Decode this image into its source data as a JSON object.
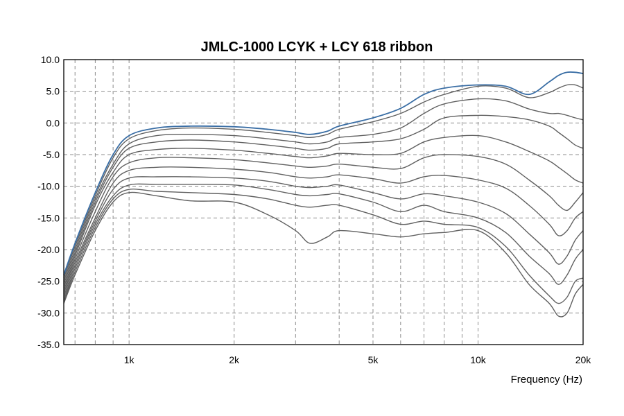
{
  "chart_data": {
    "type": "line",
    "title": "JMLC-1000 LCYK + LCY 618 ribbon",
    "xlabel": "Frequency (Hz)",
    "ylabel": "",
    "x_scale": "log",
    "xlim": [
      650,
      20000
    ],
    "ylim": [
      -35,
      10
    ],
    "grid": true,
    "x_tick_labels": [
      {
        "value": 1000,
        "label": "1k"
      },
      {
        "value": 2000,
        "label": "2k"
      },
      {
        "value": 5000,
        "label": "5k"
      },
      {
        "value": 10000,
        "label": "10k"
      },
      {
        "value": 20000,
        "label": "20k"
      }
    ],
    "y_ticks": [
      10,
      5,
      0,
      -5,
      -10,
      -15,
      -20,
      -25,
      -30,
      -35
    ],
    "y_tick_labels": [
      "10.0",
      "5.0",
      "0.0",
      "-5.0",
      "-10.0",
      "-15.0",
      "-20.0",
      "-25.0",
      "-30.0",
      "-35.0"
    ],
    "colors": {
      "primary_curve": "#3a6ea5",
      "curves": "#606060",
      "grid": "#8c8c8c",
      "axis": "#000000"
    },
    "x": [
      650,
      700,
      800,
      900,
      1000,
      1200,
      1500,
      2000,
      2500,
      3000,
      3300,
      3700,
      4000,
      5000,
      6000,
      7000,
      8000,
      10000,
      12000,
      14000,
      16000,
      17000,
      18000,
      19000,
      20000
    ],
    "series": [
      {
        "values": [
          -24,
          -19,
          -11,
          -5,
          -2,
          -0.8,
          -0.5,
          -0.6,
          -1,
          -1.5,
          -1.8,
          -1.3,
          -0.5,
          0.8,
          2.3,
          4.5,
          5.5,
          6,
          5.8,
          4.5,
          6.5,
          7.5,
          8,
          8,
          7.8
        ]
      },
      {
        "values": [
          -24.5,
          -19.5,
          -11.5,
          -5.5,
          -2.5,
          -1.2,
          -0.8,
          -1,
          -1.5,
          -2,
          -2.3,
          -1.8,
          -1,
          0.2,
          1.5,
          3.3,
          4.5,
          5.8,
          5.5,
          4,
          4.8,
          5.5,
          6,
          6,
          5.5
        ]
      },
      {
        "values": [
          -25,
          -20,
          -12,
          -6.5,
          -3.3,
          -2,
          -1.8,
          -2,
          -2.5,
          -3,
          -3.3,
          -3,
          -2.3,
          -1.8,
          -0.8,
          1.5,
          3,
          3.8,
          3.5,
          2.2,
          1.5,
          1.5,
          1.2,
          0.8,
          0.5
        ]
      },
      {
        "values": [
          -25.5,
          -20.5,
          -12.5,
          -7,
          -4,
          -3,
          -2.7,
          -3,
          -3.5,
          -4,
          -4.3,
          -4,
          -3.3,
          -3,
          -2.5,
          -1,
          0.8,
          1.2,
          1,
          0.5,
          -0.5,
          -1.5,
          -2.5,
          -3.5,
          -4
        ]
      },
      {
        "values": [
          -26,
          -21,
          -13,
          -7.8,
          -5,
          -4.2,
          -4,
          -4.3,
          -4.8,
          -5.3,
          -5.5,
          -5.2,
          -4.8,
          -5,
          -4.8,
          -3,
          -2.3,
          -2,
          -3,
          -4.5,
          -6,
          -7,
          -8,
          -9,
          -9.5
        ]
      },
      {
        "values": [
          -26.5,
          -21.5,
          -14,
          -8.5,
          -6.3,
          -5.5,
          -5.5,
          -5.8,
          -6.3,
          -6.8,
          -7,
          -6.8,
          -6.5,
          -7,
          -7.2,
          -5.5,
          -5,
          -5.3,
          -6.5,
          -9,
          -11.5,
          -13,
          -13.8,
          -12.5,
          -11
        ]
      },
      {
        "values": [
          -27,
          -22,
          -15,
          -9.5,
          -7.5,
          -7,
          -7,
          -7.3,
          -7.8,
          -8.5,
          -8.7,
          -8.5,
          -8.2,
          -8.8,
          -9.5,
          -8.5,
          -8.3,
          -9,
          -10.3,
          -13,
          -16,
          -17.8,
          -17,
          -15,
          -14
        ]
      },
      {
        "values": [
          -27.5,
          -22.5,
          -15.5,
          -10.5,
          -8.7,
          -8.5,
          -8.5,
          -8.7,
          -9.2,
          -10,
          -10.2,
          -10,
          -9.8,
          -11,
          -12,
          -11.2,
          -11.5,
          -12.5,
          -14.3,
          -17.5,
          -20.5,
          -22.3,
          -21,
          -18.5,
          -17
        ]
      },
      {
        "values": [
          -28,
          -23,
          -16,
          -11.5,
          -9.8,
          -9.7,
          -9.7,
          -9.8,
          -10.5,
          -11.3,
          -11.5,
          -11.3,
          -11.2,
          -12.5,
          -14,
          -13,
          -14,
          -15,
          -17.3,
          -21,
          -23.8,
          -25.5,
          -24,
          -21.5,
          -20
        ]
      },
      {
        "values": [
          -28.3,
          -23.5,
          -16.5,
          -12,
          -10.5,
          -10.8,
          -11,
          -11.3,
          -12,
          -13,
          -13.3,
          -13,
          -13,
          -14.5,
          -16,
          -15.5,
          -16,
          -16.5,
          -19.5,
          -24,
          -27.3,
          -28.5,
          -27.5,
          -25,
          -24.5
        ]
      },
      {
        "values": [
          -28.5,
          -24,
          -17,
          -12.5,
          -11,
          -11.5,
          -12.3,
          -12.5,
          -14.5,
          -17,
          -19,
          -18,
          -17,
          -17.5,
          -18,
          -17.5,
          -17.3,
          -17,
          -20.5,
          -25.5,
          -28.5,
          -30.5,
          -30,
          -27,
          -25.5
        ]
      }
    ]
  }
}
